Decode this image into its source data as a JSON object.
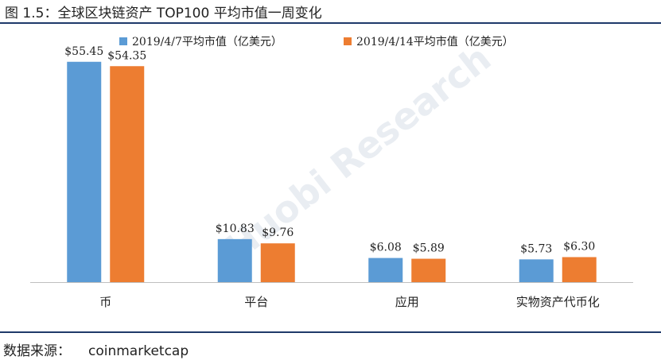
{
  "figure_title": "图 1.5：全球区块链资产 TOP100 平均市值一周变化",
  "source_label": "数据来源：",
  "source_value": "coinmarketcap",
  "watermark": "Huobi Research",
  "colors": {
    "series1": "#5b9bd5",
    "series2": "#ed7d31",
    "rule": "#1f3a6a",
    "axis": "#bfbfbf"
  },
  "chart_data": {
    "type": "bar",
    "categories": [
      "币",
      "平台",
      "应用",
      "实物资产代币化"
    ],
    "series": [
      {
        "name": "2019/4/7平均市值（亿美元）",
        "values": [
          55.45,
          10.83,
          6.08,
          5.73
        ],
        "labels": [
          "$55.45",
          "$10.83",
          "$6.08",
          "$5.73"
        ]
      },
      {
        "name": "2019/4/14平均市值（亿美元）",
        "values": [
          54.35,
          9.76,
          5.89,
          6.3
        ],
        "labels": [
          "$54.35",
          "$9.76",
          "$5.89",
          "$6.30"
        ]
      }
    ],
    "ylim": [
      0,
      60
    ],
    "legend": "top-center",
    "grid": false
  }
}
